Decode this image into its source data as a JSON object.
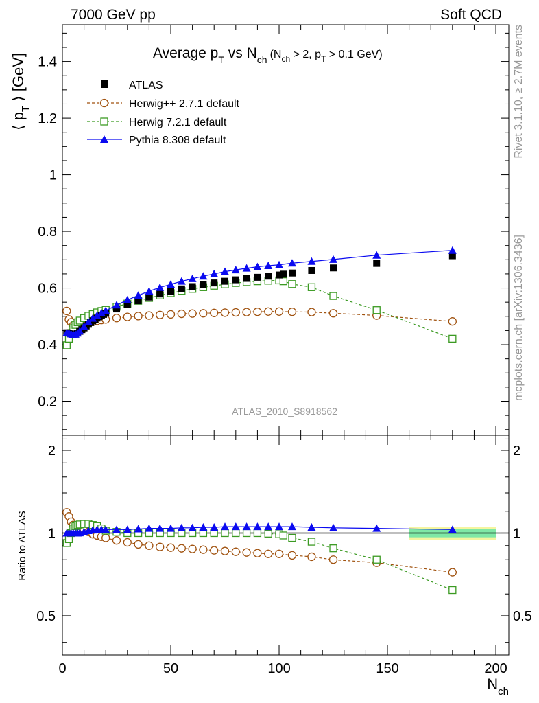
{
  "header": {
    "left": "7000 GeV pp",
    "right": "Soft QCD",
    "side_top": "Rivet 3.1.10, ≥ 2.7M events",
    "side_bottom": "mcplots.cern.ch [arXiv:1306.3436]",
    "analysis_id": "ATLAS_2010_S8918562"
  },
  "colors": {
    "atlas": "#000000",
    "herwigpp": "#a0520f",
    "herwig7": "#3b9a22",
    "pythia": "#0a0af0",
    "band_inner": "#7fe8a6",
    "band_outer": "#f5f5a0",
    "title_gray": "#999999"
  },
  "chart_data": [
    {
      "id": "main",
      "type": "scatter",
      "title": "Average p_T vs N_ch (N_ch > 2, p_T > 0.1 GeV)",
      "title_parts": {
        "a": "Average p",
        "a_sub": "T",
        "b": " vs N",
        "b_sub": "ch",
        "cut1": "(N",
        "cut1_sub": "ch",
        "cut2": " > 2, p",
        "cut2_sub": "T",
        "cut3": " > 0.1 GeV)"
      },
      "ylabel": "⟨ p_T ⟩ [GeV]",
      "ylabel_parts": {
        "open": "⟨ p",
        "sub": "T",
        "close": "⟩ [GeV]"
      },
      "xlim": [
        0,
        206
      ],
      "ylim": [
        0.08,
        1.53
      ],
      "y_ticks": [
        0.2,
        0.4,
        0.6,
        0.8,
        1.0,
        1.2,
        1.4
      ],
      "y_tick_labels": [
        "0.2",
        "0.4",
        "0.6",
        "0.8",
        "1",
        "1.2",
        "1.4"
      ],
      "legend": [
        "ATLAS",
        "Herwig++ 2.7.1 default",
        "Herwig 7.2.1 default",
        "Pythia 8.308 default"
      ],
      "legend_position": "top-left",
      "series": [
        {
          "name": "ATLAS",
          "style": "black-square",
          "x": [
            2,
            3,
            4,
            5,
            6,
            7,
            8,
            9,
            10,
            11,
            12,
            13,
            14,
            15,
            16,
            17,
            18,
            19,
            20,
            25,
            30,
            35,
            40,
            45,
            50,
            55,
            60,
            65,
            70,
            75,
            80,
            85,
            90,
            95,
            100,
            102,
            106,
            115,
            125,
            145,
            180
          ],
          "y": [
            0.442,
            0.441,
            0.438,
            0.436,
            0.437,
            0.441,
            0.447,
            0.453,
            0.459,
            0.466,
            0.472,
            0.478,
            0.484,
            0.489,
            0.494,
            0.499,
            0.503,
            0.507,
            0.511,
            0.526,
            0.541,
            0.555,
            0.568,
            0.579,
            0.589,
            0.597,
            0.605,
            0.612,
            0.618,
            0.624,
            0.629,
            0.634,
            0.638,
            0.642,
            0.646,
            0.649,
            0.653,
            0.662,
            0.671,
            0.687,
            0.714
          ]
        },
        {
          "name": "Herwig++ 2.7.1 default",
          "style": "open-circle-dashed",
          "x": [
            2,
            3,
            4,
            5,
            6,
            7,
            8,
            10,
            12,
            14,
            16,
            18,
            20,
            25,
            30,
            35,
            40,
            45,
            50,
            55,
            60,
            65,
            70,
            75,
            80,
            85,
            90,
            95,
            100,
            106,
            115,
            125,
            145,
            180
          ],
          "y": [
            0.519,
            0.489,
            0.479,
            0.468,
            0.461,
            0.463,
            0.466,
            0.472,
            0.477,
            0.481,
            0.484,
            0.487,
            0.489,
            0.494,
            0.498,
            0.501,
            0.503,
            0.505,
            0.507,
            0.509,
            0.51,
            0.511,
            0.512,
            0.513,
            0.514,
            0.515,
            0.516,
            0.517,
            0.517,
            0.516,
            0.515,
            0.511,
            0.503,
            0.482
          ]
        },
        {
          "name": "Herwig 7.2.1 default",
          "style": "open-square-dashed",
          "x": [
            2,
            3,
            4,
            5,
            6,
            7,
            8,
            10,
            12,
            14,
            16,
            18,
            20,
            25,
            30,
            35,
            40,
            45,
            50,
            55,
            60,
            65,
            70,
            75,
            80,
            85,
            90,
            95,
            100,
            102,
            106,
            115,
            125,
            145,
            180
          ],
          "y": [
            0.398,
            0.421,
            0.441,
            0.458,
            0.47,
            0.479,
            0.485,
            0.494,
            0.502,
            0.508,
            0.514,
            0.519,
            0.523,
            0.534,
            0.545,
            0.555,
            0.565,
            0.574,
            0.582,
            0.59,
            0.597,
            0.603,
            0.608,
            0.613,
            0.618,
            0.621,
            0.624,
            0.626,
            0.627,
            0.624,
            0.614,
            0.603,
            0.572,
            0.522,
            0.421
          ]
        },
        {
          "name": "Pythia 8.308 default",
          "style": "filled-triangle-solid",
          "x": [
            2,
            3,
            4,
            5,
            6,
            7,
            8,
            10,
            12,
            14,
            16,
            18,
            20,
            25,
            30,
            35,
            40,
            45,
            50,
            55,
            60,
            65,
            70,
            75,
            80,
            85,
            90,
            95,
            100,
            106,
            115,
            125,
            145,
            180
          ],
          "y": [
            0.442,
            0.441,
            0.438,
            0.436,
            0.437,
            0.441,
            0.448,
            0.464,
            0.48,
            0.493,
            0.503,
            0.512,
            0.52,
            0.54,
            0.558,
            0.574,
            0.589,
            0.602,
            0.613,
            0.624,
            0.633,
            0.642,
            0.65,
            0.658,
            0.664,
            0.67,
            0.675,
            0.679,
            0.682,
            0.688,
            0.694,
            0.701,
            0.716,
            0.733
          ]
        }
      ]
    },
    {
      "id": "ratio",
      "type": "scatter",
      "ylabel": "Ratio to ATLAS",
      "xlabel": "N_ch",
      "xlabel_parts": {
        "main": "N",
        "sub": "ch"
      },
      "xlim": [
        0,
        206
      ],
      "ylim": [
        0.36,
        2.27
      ],
      "log_y": true,
      "y_ticks": [
        0.5,
        1,
        2
      ],
      "y_tick_labels": [
        "0.5",
        "1",
        "2"
      ],
      "x_ticks": [
        0,
        50,
        100,
        150,
        200
      ],
      "x_tick_labels": [
        "0",
        "50",
        "100",
        "150",
        "200"
      ],
      "reference": 1.0,
      "uncertainty_band": {
        "x_range": [
          160,
          200
        ],
        "inner": [
          0.965,
          1.035
        ],
        "outer": [
          0.945,
          1.055
        ]
      },
      "series": [
        {
          "name": "Herwig++ 2.7.1 default",
          "x": [
            2,
            3,
            4,
            5,
            6,
            7,
            8,
            10,
            12,
            14,
            16,
            18,
            20,
            25,
            30,
            35,
            40,
            45,
            50,
            55,
            60,
            65,
            70,
            75,
            80,
            85,
            90,
            95,
            100,
            106,
            115,
            125,
            145,
            180
          ],
          "y": [
            1.19,
            1.15,
            1.1,
            1.07,
            1.06,
            1.05,
            1.045,
            1.03,
            1.01,
            0.99,
            0.98,
            0.97,
            0.96,
            0.94,
            0.925,
            0.91,
            0.9,
            0.89,
            0.885,
            0.88,
            0.875,
            0.87,
            0.865,
            0.86,
            0.855,
            0.85,
            0.845,
            0.84,
            0.84,
            0.83,
            0.82,
            0.8,
            0.78,
            0.72
          ]
        },
        {
          "name": "Herwig 7.2.1 default",
          "x": [
            2,
            3,
            4,
            5,
            6,
            7,
            8,
            10,
            12,
            14,
            16,
            18,
            20,
            25,
            30,
            35,
            40,
            45,
            50,
            55,
            60,
            65,
            70,
            75,
            80,
            85,
            90,
            95,
            100,
            102,
            106,
            115,
            125,
            145,
            180
          ],
          "y": [
            0.92,
            0.95,
            1.0,
            1.04,
            1.06,
            1.07,
            1.075,
            1.08,
            1.08,
            1.07,
            1.06,
            1.04,
            1.02,
            1.01,
            1.0,
            1.0,
            1.0,
            1.0,
            1.0,
            1.0,
            1.0,
            1.0,
            1.0,
            1.0,
            1.0,
            1.0,
            1.0,
            0.995,
            0.99,
            0.98,
            0.96,
            0.93,
            0.88,
            0.8,
            0.62
          ]
        },
        {
          "name": "Pythia 8.308 default",
          "x": [
            2,
            3,
            4,
            5,
            6,
            7,
            8,
            10,
            12,
            14,
            16,
            18,
            20,
            25,
            30,
            35,
            40,
            45,
            50,
            55,
            60,
            65,
            70,
            75,
            80,
            85,
            90,
            95,
            100,
            106,
            115,
            125,
            145,
            180
          ],
          "y": [
            1.0,
            1.0,
            1.0,
            1.0,
            1.0,
            1.0,
            1.002,
            1.01,
            1.02,
            1.025,
            1.03,
            1.03,
            1.03,
            1.03,
            1.03,
            1.035,
            1.04,
            1.04,
            1.04,
            1.045,
            1.045,
            1.05,
            1.05,
            1.055,
            1.055,
            1.055,
            1.055,
            1.055,
            1.055,
            1.055,
            1.05,
            1.045,
            1.04,
            1.03
          ]
        }
      ]
    }
  ]
}
